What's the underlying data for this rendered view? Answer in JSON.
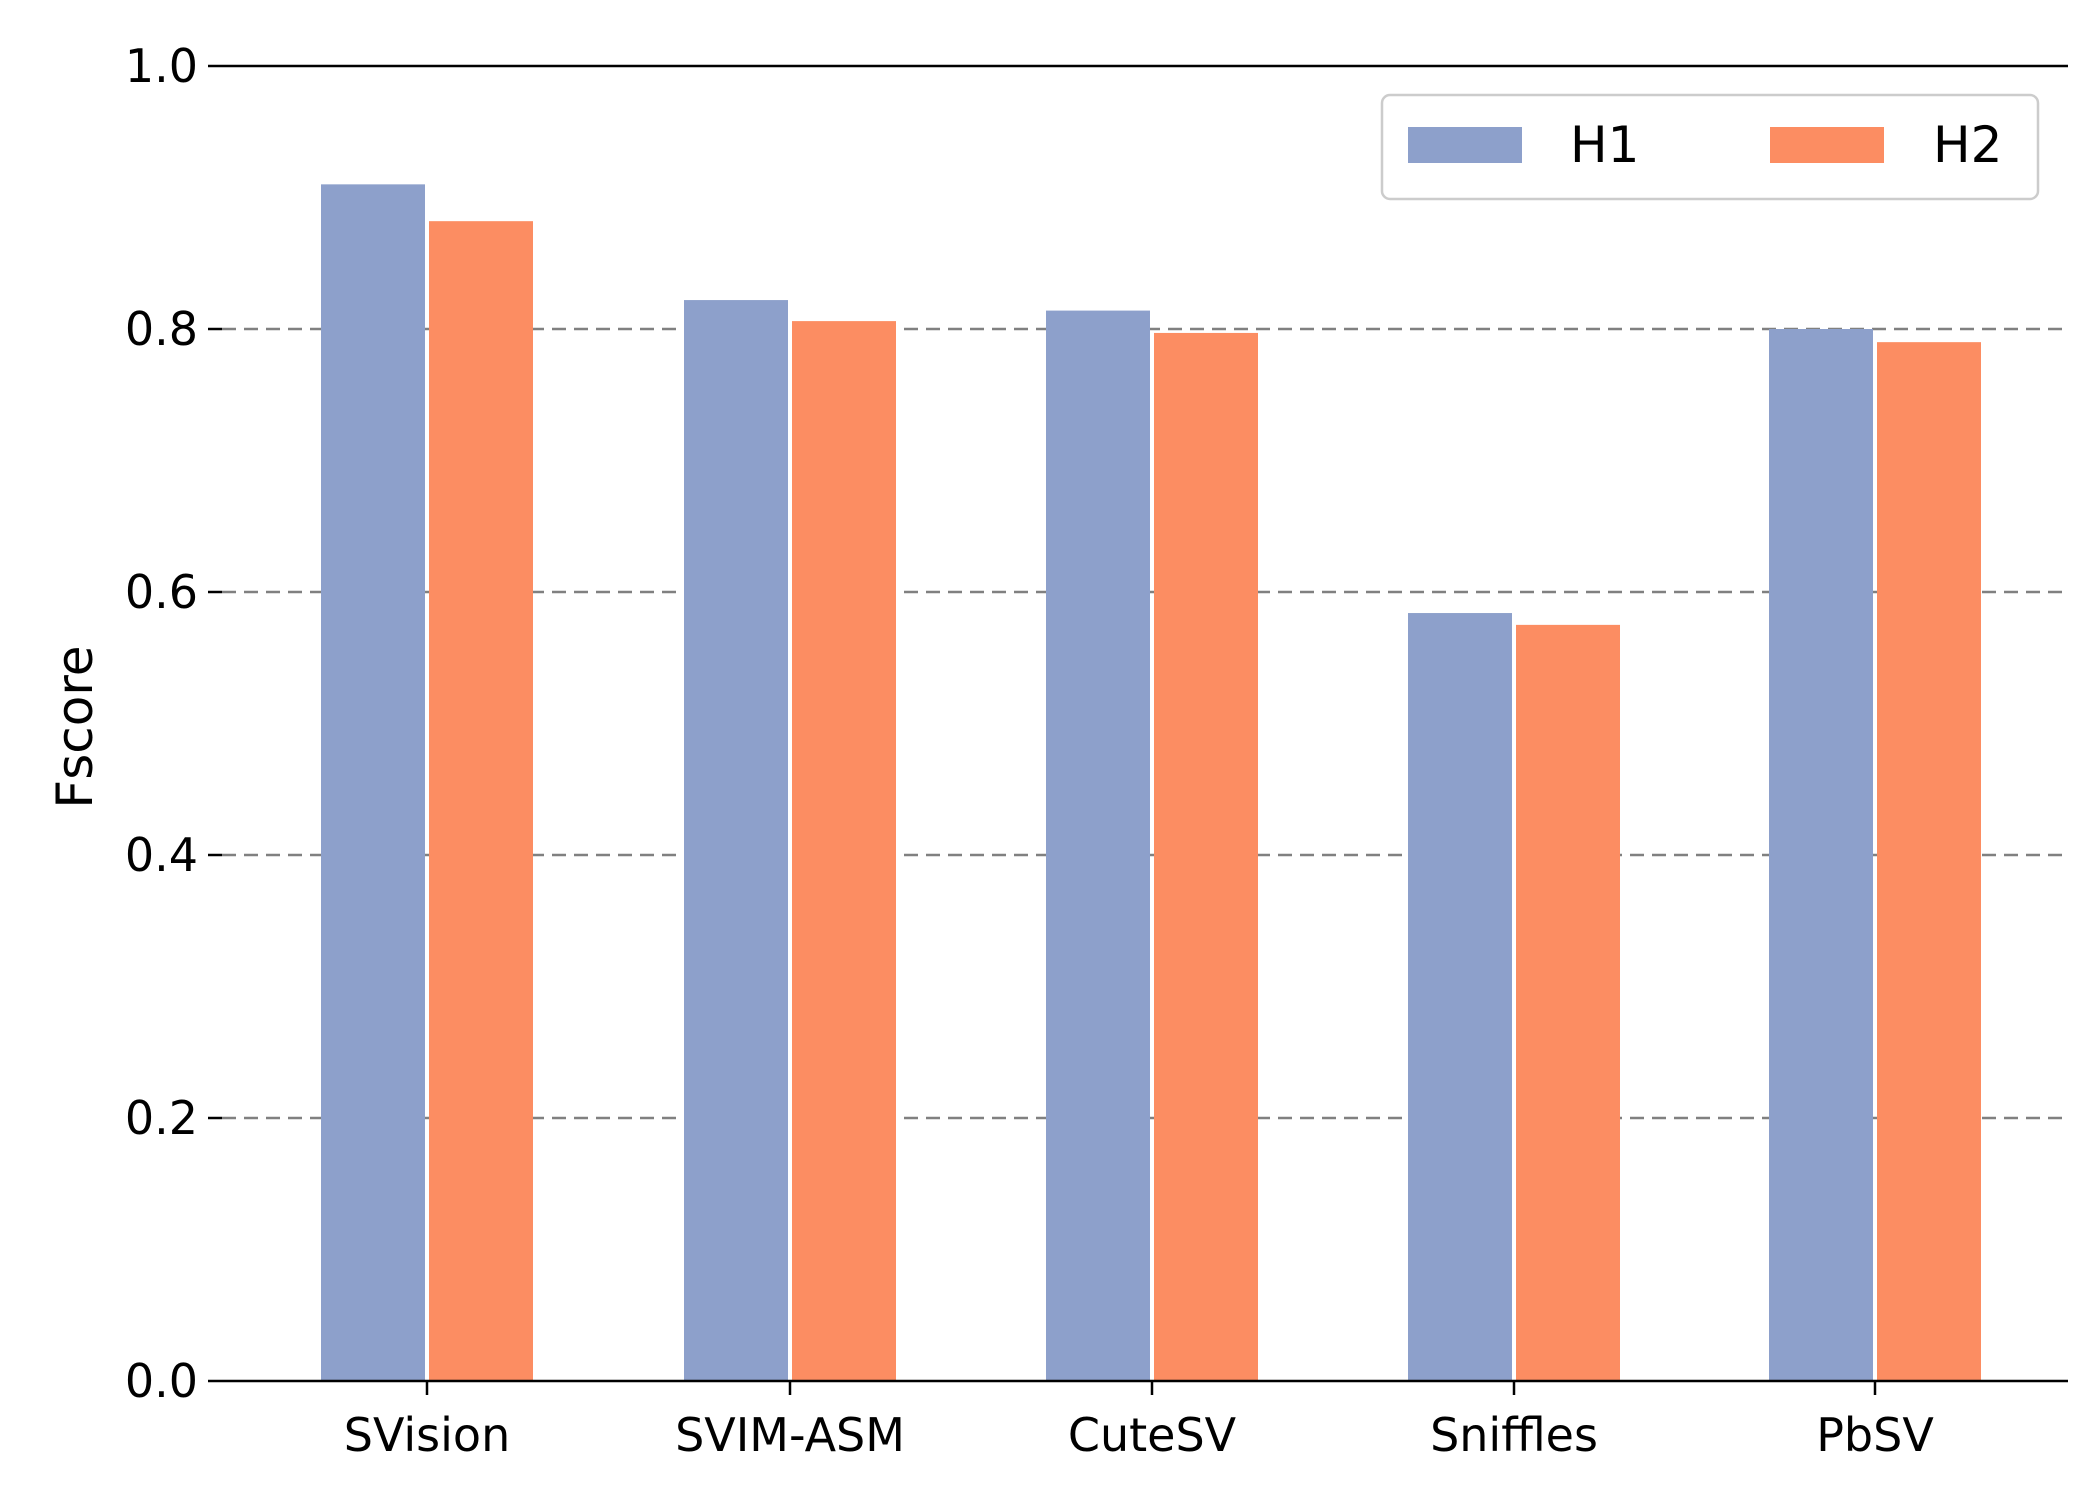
{
  "chart_data": {
    "type": "bar",
    "title": "",
    "xlabel": "",
    "ylabel": "Fscore",
    "ylim": [
      0.0,
      1.0
    ],
    "yticks": [
      "0.0",
      "0.2",
      "0.4",
      "0.6",
      "0.8",
      "1.0"
    ],
    "ytick_values": [
      0.0,
      0.2,
      0.4,
      0.6,
      0.8,
      1.0
    ],
    "categories": [
      "SVision",
      "SVIM-ASM",
      "CuteSV",
      "Sniffles",
      "PbSV"
    ],
    "series": [
      {
        "name": "H1",
        "color": "#8da0cb",
        "values": [
          0.91,
          0.822,
          0.814,
          0.584,
          0.8
        ]
      },
      {
        "name": "H2",
        "color": "#fc8d62",
        "values": [
          0.882,
          0.806,
          0.797,
          0.575,
          0.79
        ]
      }
    ],
    "grid": "horizontal dashed",
    "legend": {
      "placement": "top-right",
      "columns": 2
    }
  }
}
